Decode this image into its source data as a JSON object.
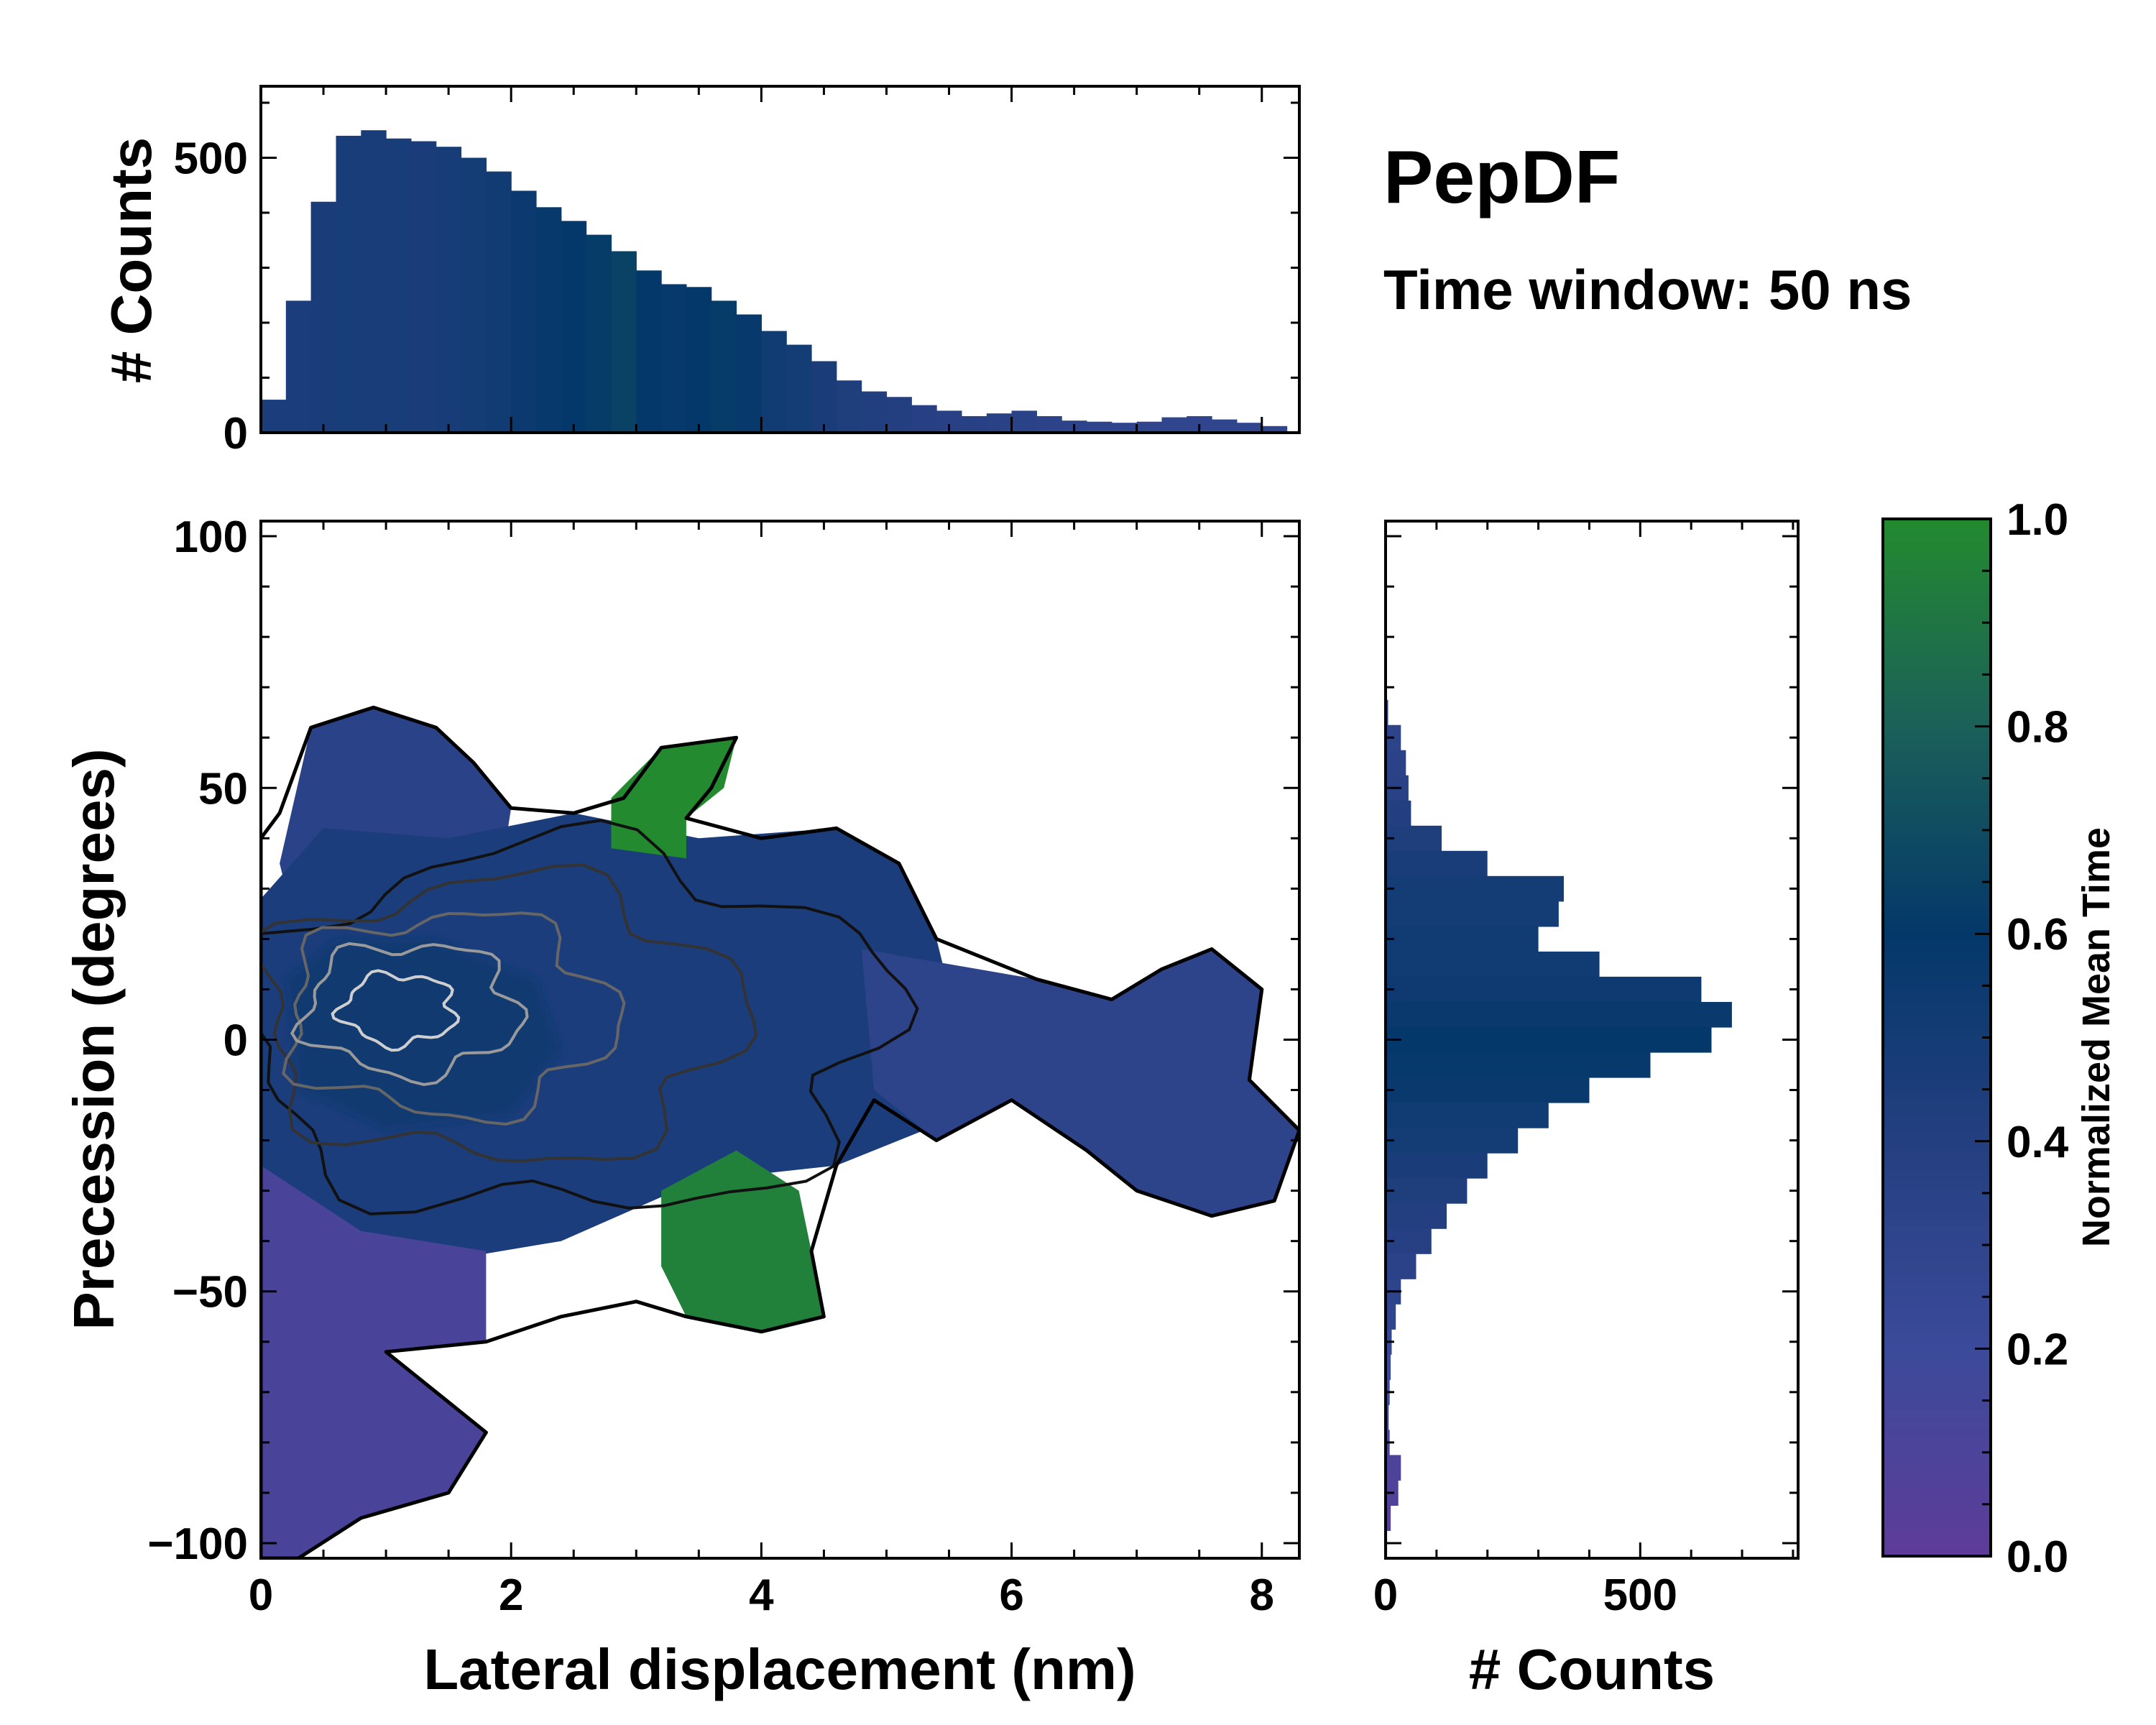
{
  "chart_data": {
    "type": "heatmap",
    "title": "PepDF",
    "subtitle": "Time window: 50 ns",
    "xlabel": "Lateral displacement (nm)",
    "ylabel": "Precession (degrees)",
    "xlim": [
      0,
      8.3
    ],
    "ylim": [
      -103,
      103
    ],
    "xticks": [
      {
        "value": 0,
        "label": "0"
      },
      {
        "value": 2,
        "label": "2"
      },
      {
        "value": 4,
        "label": "4"
      },
      {
        "value": 6,
        "label": "6"
      },
      {
        "value": 8,
        "label": "8"
      }
    ],
    "yticks": [
      {
        "value": 100,
        "label": "100"
      },
      {
        "value": 50,
        "label": "50"
      },
      {
        "value": 0,
        "label": "0"
      },
      {
        "value": -50,
        "label": "−50"
      },
      {
        "value": -100,
        "label": "−100"
      }
    ],
    "colorbar": {
      "label": "Normalized Mean Time",
      "range": [
        0,
        1
      ],
      "ticks": [
        {
          "value": 0.0,
          "label": "0.0"
        },
        {
          "value": 0.2,
          "label": "0.2"
        },
        {
          "value": 0.4,
          "label": "0.4"
        },
        {
          "value": 0.6,
          "label": "0.6"
        },
        {
          "value": 0.8,
          "label": "0.8"
        },
        {
          "value": 1.0,
          "label": "1.0"
        }
      ],
      "colors": [
        "#5e3c99",
        "#3b4a9a",
        "#243f80",
        "#04386a",
        "#1b6059",
        "#238a2f"
      ]
    },
    "top_histogram": {
      "ylabel": "# Counts",
      "ylim": [
        0,
        630
      ],
      "yticks": [
        {
          "value": 0,
          "label": "0"
        },
        {
          "value": 500,
          "label": "500"
        }
      ],
      "x": [
        0.1,
        0.3,
        0.5,
        0.7,
        0.9,
        1.1,
        1.3,
        1.5,
        1.7,
        1.9,
        2.1,
        2.3,
        2.5,
        2.7,
        2.9,
        3.1,
        3.3,
        3.5,
        3.7,
        3.9,
        4.1,
        4.3,
        4.5,
        4.7,
        4.9,
        5.1,
        5.3,
        5.5,
        5.7,
        5.9,
        6.1,
        6.3,
        6.5,
        6.7,
        6.9,
        7.1,
        7.3,
        7.5,
        7.7,
        7.9,
        8.1
      ],
      "counts": [
        60,
        240,
        420,
        540,
        550,
        535,
        530,
        520,
        500,
        475,
        440,
        410,
        385,
        360,
        330,
        295,
        270,
        265,
        240,
        215,
        185,
        160,
        130,
        95,
        75,
        65,
        50,
        40,
        30,
        35,
        40,
        30,
        22,
        20,
        18,
        20,
        28,
        30,
        24,
        18,
        12
      ],
      "mean_time": [
        0.45,
        0.45,
        0.46,
        0.47,
        0.47,
        0.47,
        0.46,
        0.48,
        0.5,
        0.52,
        0.55,
        0.58,
        0.6,
        0.62,
        0.65,
        0.6,
        0.58,
        0.6,
        0.62,
        0.58,
        0.52,
        0.5,
        0.46,
        0.44,
        0.42,
        0.4,
        0.38,
        0.37,
        0.37,
        0.36,
        0.35,
        0.33,
        0.32,
        0.31,
        0.31,
        0.3,
        0.3,
        0.3,
        0.3,
        0.3,
        0.3
      ]
    },
    "right_histogram": {
      "xlabel": "# Counts",
      "xlim": [
        0,
        810
      ],
      "xticks": [
        {
          "value": 0,
          "label": "0"
        },
        {
          "value": 500,
          "label": "500"
        }
      ],
      "y": [
        65,
        60,
        55,
        50,
        45,
        40,
        35,
        30,
        25,
        20,
        15,
        10,
        5,
        0,
        -5,
        -10,
        -15,
        -20,
        -25,
        -30,
        -35,
        -40,
        -45,
        -50,
        -55,
        -60,
        -65,
        -70,
        -75,
        -80,
        -85,
        -90,
        -95,
        -100
      ],
      "counts": [
        5,
        30,
        40,
        45,
        50,
        110,
        200,
        350,
        340,
        300,
        420,
        620,
        680,
        640,
        520,
        400,
        320,
        260,
        200,
        160,
        120,
        90,
        60,
        30,
        20,
        12,
        10,
        8,
        6,
        8,
        30,
        25,
        10,
        3
      ],
      "mean_time": [
        0.3,
        0.32,
        0.34,
        0.36,
        0.4,
        0.44,
        0.47,
        0.5,
        0.5,
        0.52,
        0.52,
        0.54,
        0.56,
        0.6,
        0.58,
        0.56,
        0.52,
        0.5,
        0.46,
        0.44,
        0.4,
        0.38,
        0.34,
        0.32,
        0.3,
        0.24,
        0.2,
        0.18,
        0.16,
        0.12,
        0.1,
        0.08,
        0.06,
        0.05
      ]
    },
    "regions": [
      {
        "name": "upper-left blob",
        "x": [
          0.2,
          2.0
        ],
        "y": [
          30,
          66
        ],
        "mean_time": 0.35
      },
      {
        "name": "central band",
        "x": [
          0,
          5.5
        ],
        "y": [
          -40,
          40
        ],
        "mean_time": 0.45
      },
      {
        "name": "upper green lobe",
        "x": [
          2.8,
          4.0
        ],
        "y": [
          35,
          62
        ],
        "mean_time": 1.0
      },
      {
        "name": "lower green lobe",
        "x": [
          3.2,
          4.5
        ],
        "y": [
          -60,
          -25
        ],
        "mean_time": 0.95
      },
      {
        "name": "right arm",
        "x": [
          4.8,
          8.3
        ],
        "y": [
          -38,
          18
        ],
        "mean_time": 0.32
      },
      {
        "name": "lower-left violet tail",
        "x": [
          0,
          1.8
        ],
        "y": [
          -103,
          -30
        ],
        "mean_time": 0.12
      },
      {
        "name": "dense core",
        "x": [
          0.2,
          2.4
        ],
        "y": [
          -15,
          20
        ],
        "mean_time": 0.55
      }
    ]
  }
}
